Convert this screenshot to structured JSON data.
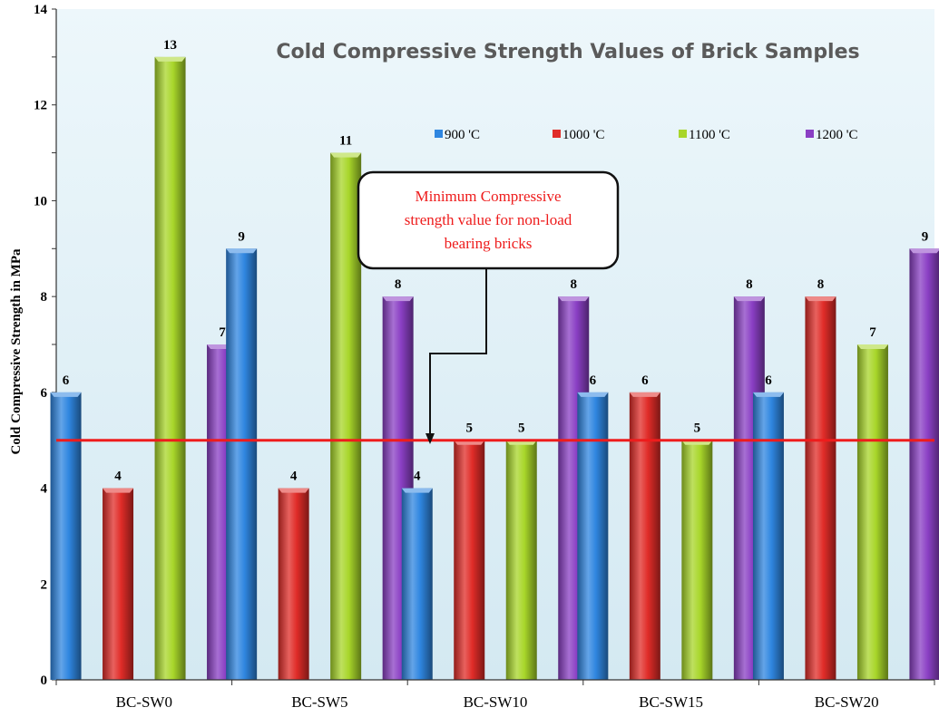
{
  "chart_data": {
    "type": "bar",
    "title": "Cold Compressive Strength Values of Brick Samples",
    "xlabel": "",
    "ylabel": "Cold Compressive Strength in MPa",
    "ylim": [
      0,
      14
    ],
    "yticks": [
      0,
      2,
      4,
      6,
      8,
      10,
      12,
      14
    ],
    "grid": false,
    "legend_position": "top-right",
    "categories": [
      "BC-SW0",
      "BC-SW5",
      "BC-SW10",
      "BC-SW15",
      "BC-SW20"
    ],
    "series": [
      {
        "name": "900 'C",
        "color": "#2f86e0",
        "values": [
          6,
          9,
          4,
          6,
          6
        ],
        "labels": [
          "6",
          "9",
          "4",
          "6",
          "6"
        ]
      },
      {
        "name": "1000 'C",
        "color": "#e02c28",
        "values": [
          4,
          4,
          5,
          6,
          8
        ],
        "labels": [
          "4",
          "4",
          "5",
          "6",
          "8"
        ]
      },
      {
        "name": "1100 'C",
        "color": "#a8d62a",
        "values": [
          13,
          11,
          5,
          5,
          7
        ],
        "labels": [
          "13",
          "11",
          "5",
          "5",
          "7"
        ]
      },
      {
        "name": "1200 'C",
        "color": "#8a3fc4",
        "values": [
          7,
          8,
          8,
          8,
          9
        ],
        "labels": [
          "7",
          "8",
          "8",
          "8",
          "9"
        ]
      }
    ],
    "reference_line": {
      "value": 5,
      "color": "#ee1c1c"
    },
    "annotation": {
      "lines": [
        "Minimum Compressive",
        "strength value for non-load",
        "bearing bricks"
      ],
      "color": "#ee1c1c"
    },
    "background_color": "#e3f1f7",
    "title_color": "#5a5a5a"
  }
}
